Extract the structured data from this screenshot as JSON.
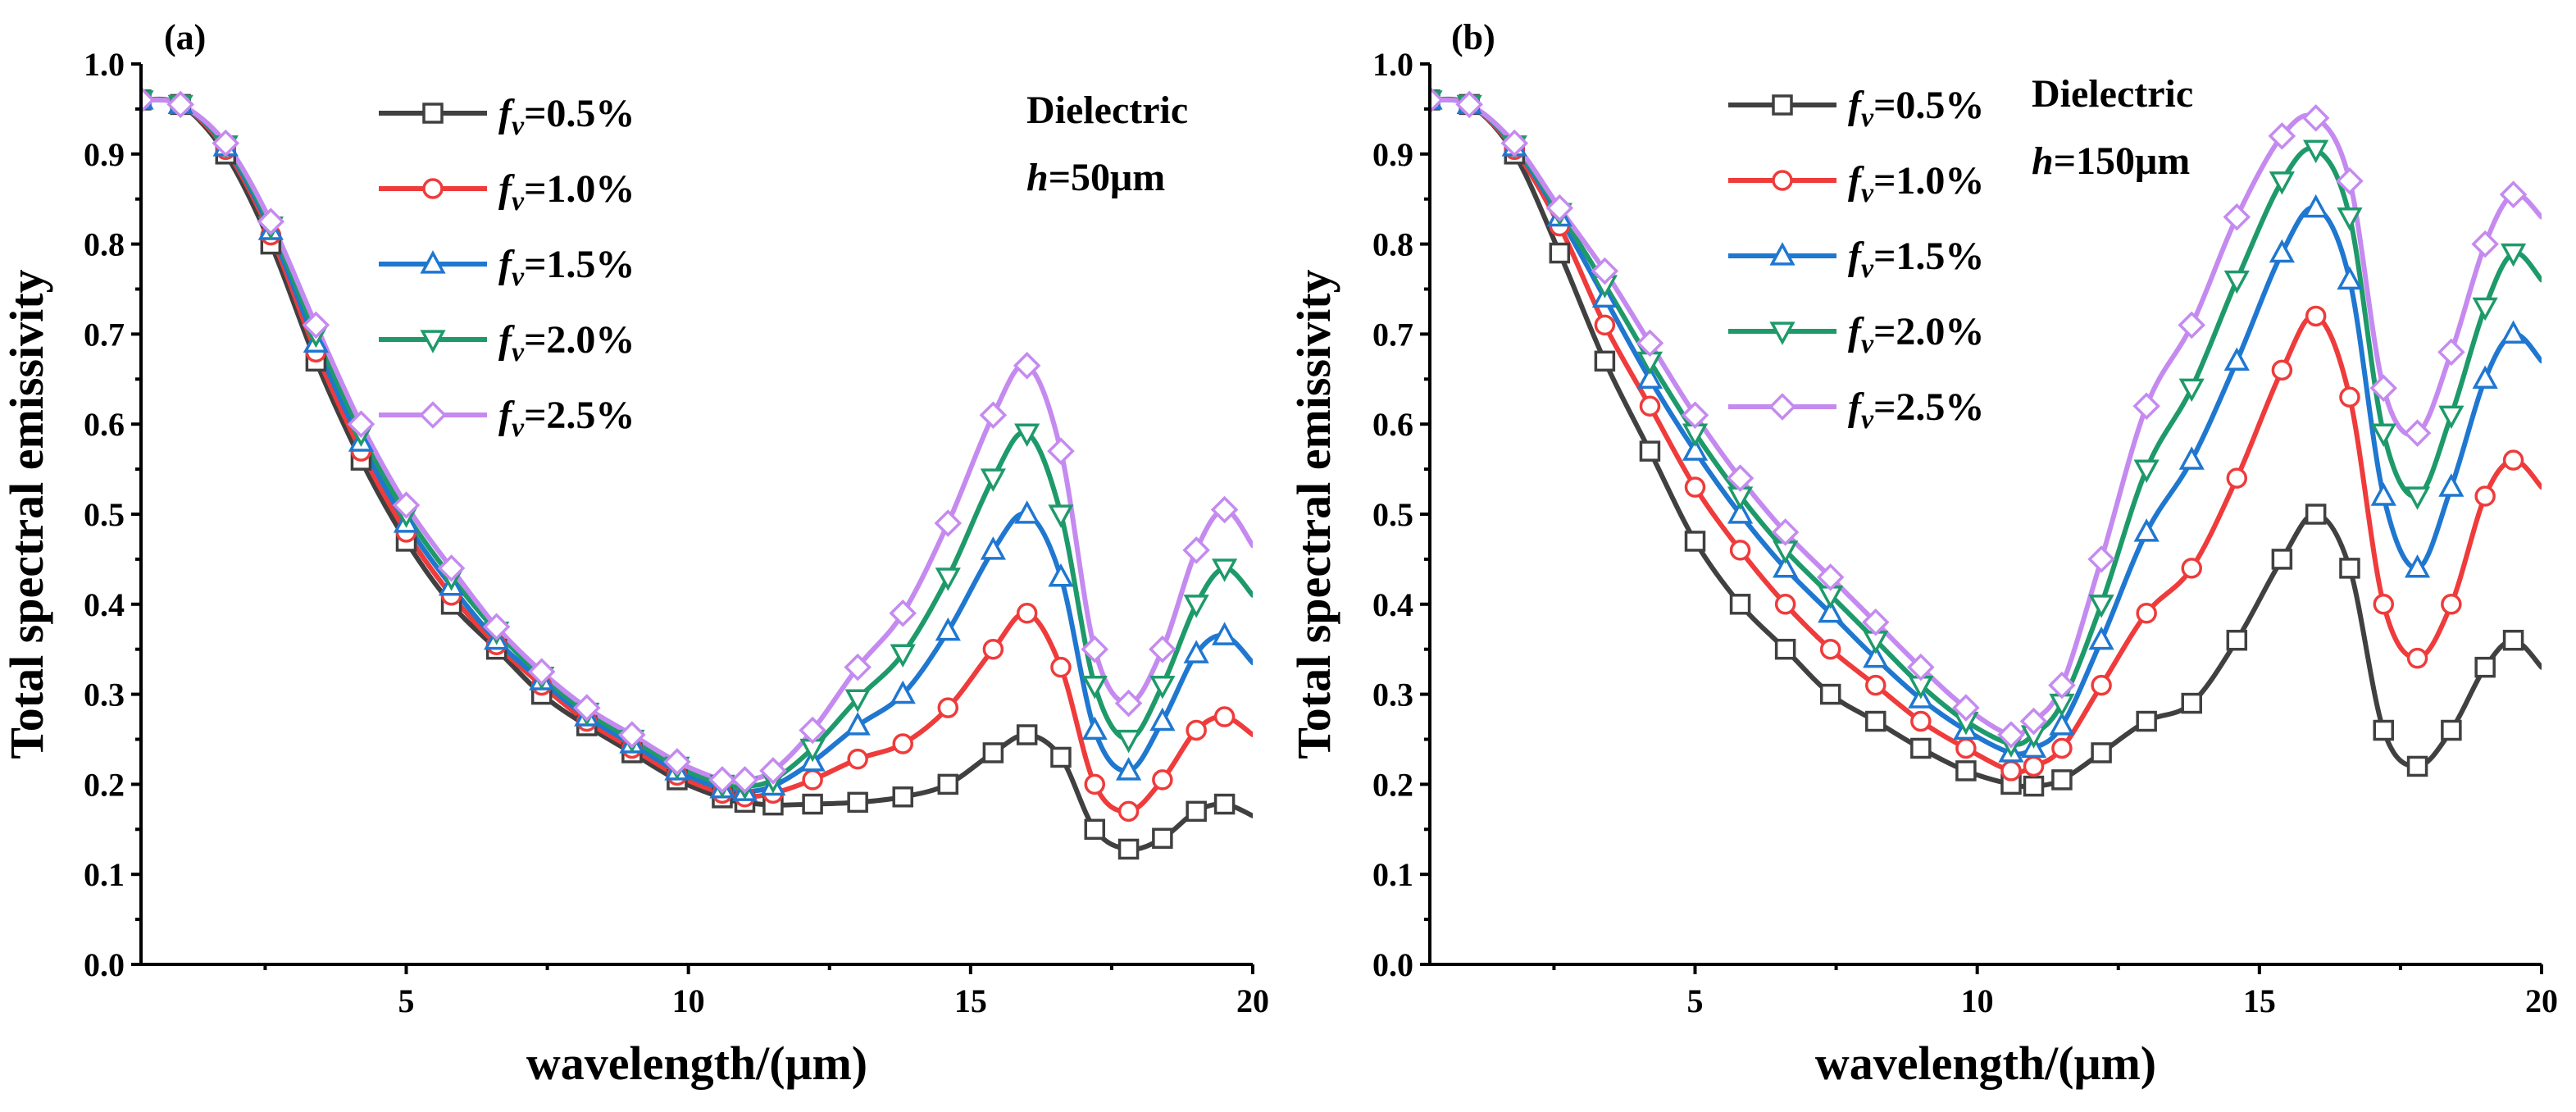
{
  "chart_data": [
    {
      "type": "line",
      "panel_label": "(a)",
      "annotation_line1": "Dielectric",
      "annotation_line2_prefix": "h",
      "annotation_line2_suffix": "=50μm",
      "xlabel": "wavelength/(μm)",
      "ylabel": "Total spectral emissivity",
      "xlim": [
        0.3,
        20
      ],
      "ylim": [
        0,
        1.0
      ],
      "xticks": [
        5,
        10,
        15,
        20
      ],
      "yticks": [
        0.0,
        0.1,
        0.2,
        0.3,
        0.4,
        0.5,
        0.6,
        0.7,
        0.8,
        0.9,
        1.0
      ],
      "x": [
        0.3,
        1.0,
        1.8,
        2.6,
        3.4,
        4.2,
        5.0,
        5.8,
        6.6,
        7.4,
        8.2,
        9.0,
        9.8,
        10.6,
        11.0,
        11.5,
        12.2,
        13.0,
        13.8,
        14.6,
        15.4,
        16.0,
        16.6,
        17.2,
        17.8,
        18.4,
        19.0,
        19.5,
        20.0
      ],
      "series": [
        {
          "name_prefix": "f",
          "name_sub": "v",
          "name_suffix": "=0.5%",
          "color": "#404040",
          "marker": "square",
          "values": [
            0.96,
            0.955,
            0.9,
            0.8,
            0.67,
            0.56,
            0.47,
            0.4,
            0.35,
            0.3,
            0.265,
            0.235,
            0.205,
            0.185,
            0.18,
            0.177,
            0.178,
            0.18,
            0.186,
            0.2,
            0.235,
            0.255,
            0.23,
            0.15,
            0.128,
            0.14,
            0.17,
            0.178,
            0.165
          ]
        },
        {
          "name_prefix": "f",
          "name_sub": "v",
          "name_suffix": "=1.0%",
          "color": "#ef3b3b",
          "marker": "circle",
          "values": [
            0.96,
            0.955,
            0.905,
            0.81,
            0.68,
            0.57,
            0.48,
            0.41,
            0.355,
            0.31,
            0.27,
            0.24,
            0.21,
            0.19,
            0.186,
            0.19,
            0.205,
            0.228,
            0.245,
            0.285,
            0.35,
            0.39,
            0.33,
            0.2,
            0.17,
            0.205,
            0.26,
            0.275,
            0.255
          ]
        },
        {
          "name_prefix": "f",
          "name_sub": "v",
          "name_suffix": "=1.5%",
          "color": "#1f77d0",
          "marker": "triangle-up",
          "values": [
            0.96,
            0.955,
            0.908,
            0.815,
            0.69,
            0.58,
            0.49,
            0.42,
            0.36,
            0.315,
            0.275,
            0.245,
            0.215,
            0.195,
            0.192,
            0.198,
            0.225,
            0.265,
            0.3,
            0.37,
            0.46,
            0.5,
            0.43,
            0.26,
            0.215,
            0.27,
            0.345,
            0.365,
            0.335
          ]
        },
        {
          "name_prefix": "f",
          "name_sub": "v",
          "name_suffix": "=2.0%",
          "color": "#1e9a6a",
          "marker": "triangle-down",
          "values": [
            0.96,
            0.955,
            0.91,
            0.82,
            0.7,
            0.59,
            0.5,
            0.43,
            0.37,
            0.32,
            0.28,
            0.25,
            0.22,
            0.2,
            0.198,
            0.205,
            0.24,
            0.295,
            0.345,
            0.43,
            0.54,
            0.59,
            0.5,
            0.31,
            0.25,
            0.31,
            0.4,
            0.44,
            0.41
          ]
        },
        {
          "name_prefix": "f",
          "name_sub": "v",
          "name_suffix": "=2.5%",
          "color": "#c58af0",
          "marker": "diamond",
          "values": [
            0.96,
            0.955,
            0.912,
            0.825,
            0.71,
            0.6,
            0.51,
            0.44,
            0.375,
            0.325,
            0.285,
            0.255,
            0.225,
            0.205,
            0.205,
            0.215,
            0.26,
            0.33,
            0.39,
            0.49,
            0.61,
            0.665,
            0.57,
            0.35,
            0.29,
            0.35,
            0.46,
            0.505,
            0.465
          ]
        }
      ]
    },
    {
      "type": "line",
      "panel_label": "(b)",
      "annotation_line1": "Dielectric",
      "annotation_line2_prefix": "h",
      "annotation_line2_suffix": "=150μm",
      "xlabel": "wavelength/(μm)",
      "ylabel": "Total spectral emissivity",
      "xlim": [
        0.3,
        20
      ],
      "ylim": [
        0,
        1.0
      ],
      "xticks": [
        5,
        10,
        15,
        20
      ],
      "yticks": [
        0.0,
        0.1,
        0.2,
        0.3,
        0.4,
        0.5,
        0.6,
        0.7,
        0.8,
        0.9,
        1.0
      ],
      "x": [
        0.3,
        1.0,
        1.8,
        2.6,
        3.4,
        4.2,
        5.0,
        5.8,
        6.6,
        7.4,
        8.2,
        9.0,
        9.8,
        10.6,
        11.0,
        11.5,
        12.2,
        13.0,
        13.8,
        14.6,
        15.4,
        16.0,
        16.6,
        17.2,
        17.8,
        18.4,
        19.0,
        19.5,
        20.0
      ],
      "series": [
        {
          "name_prefix": "f",
          "name_sub": "v",
          "name_suffix": "=0.5%",
          "color": "#404040",
          "marker": "square",
          "values": [
            0.96,
            0.955,
            0.9,
            0.79,
            0.67,
            0.57,
            0.47,
            0.4,
            0.35,
            0.3,
            0.27,
            0.24,
            0.215,
            0.2,
            0.198,
            0.205,
            0.235,
            0.27,
            0.29,
            0.36,
            0.45,
            0.5,
            0.44,
            0.26,
            0.22,
            0.26,
            0.33,
            0.36,
            0.33
          ]
        },
        {
          "name_prefix": "f",
          "name_sub": "v",
          "name_suffix": "=1.0%",
          "color": "#ef3b3b",
          "marker": "circle",
          "values": [
            0.96,
            0.955,
            0.905,
            0.82,
            0.71,
            0.62,
            0.53,
            0.46,
            0.4,
            0.35,
            0.31,
            0.27,
            0.24,
            0.215,
            0.22,
            0.24,
            0.31,
            0.39,
            0.44,
            0.54,
            0.66,
            0.72,
            0.63,
            0.4,
            0.34,
            0.4,
            0.52,
            0.56,
            0.53
          ]
        },
        {
          "name_prefix": "f",
          "name_sub": "v",
          "name_suffix": "=1.5%",
          "color": "#1f77d0",
          "marker": "triangle-up",
          "values": [
            0.96,
            0.955,
            0.908,
            0.83,
            0.74,
            0.65,
            0.57,
            0.5,
            0.44,
            0.39,
            0.34,
            0.295,
            0.26,
            0.235,
            0.24,
            0.265,
            0.36,
            0.48,
            0.56,
            0.67,
            0.79,
            0.84,
            0.76,
            0.52,
            0.44,
            0.53,
            0.65,
            0.7,
            0.67
          ]
        },
        {
          "name_prefix": "f",
          "name_sub": "v",
          "name_suffix": "=2.0%",
          "color": "#1e9a6a",
          "marker": "triangle-down",
          "values": [
            0.96,
            0.955,
            0.91,
            0.835,
            0.755,
            0.67,
            0.59,
            0.52,
            0.46,
            0.41,
            0.36,
            0.31,
            0.27,
            0.245,
            0.255,
            0.29,
            0.4,
            0.55,
            0.64,
            0.76,
            0.87,
            0.905,
            0.83,
            0.59,
            0.52,
            0.61,
            0.73,
            0.79,
            0.76
          ]
        },
        {
          "name_prefix": "f",
          "name_sub": "v",
          "name_suffix": "=2.5%",
          "color": "#c58af0",
          "marker": "diamond",
          "values": [
            0.96,
            0.955,
            0.912,
            0.84,
            0.77,
            0.69,
            0.61,
            0.54,
            0.48,
            0.43,
            0.38,
            0.33,
            0.285,
            0.255,
            0.27,
            0.31,
            0.45,
            0.62,
            0.71,
            0.83,
            0.92,
            0.94,
            0.87,
            0.64,
            0.59,
            0.68,
            0.8,
            0.855,
            0.83
          ]
        }
      ]
    }
  ]
}
